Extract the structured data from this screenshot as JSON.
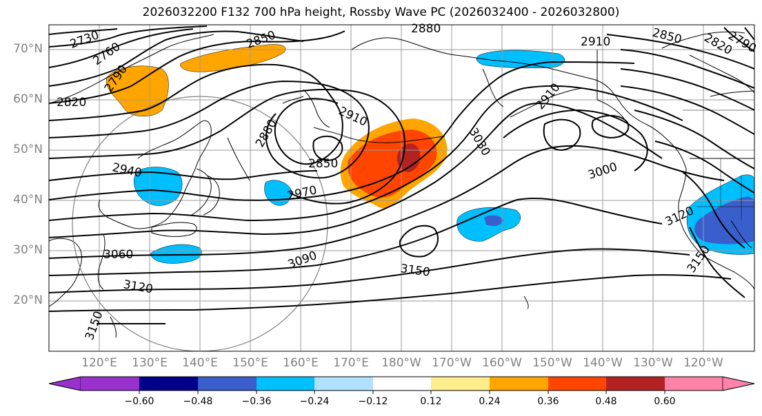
{
  "title": "2026032200 F132 700 hPa height, Rossby Wave PC (2026032400 - 2026032800)",
  "lat_labels": [
    "70°N",
    "60°N",
    "50°N",
    "40°N",
    "30°N",
    "20°N"
  ],
  "lon_labels": [
    "120°E",
    "130°E",
    "140°E",
    "150°E",
    "160°E",
    "170°E",
    "180°W",
    "170°W",
    "160°W",
    "150°W",
    "140°W",
    "130°W",
    "120°W"
  ],
  "contour_labels": [
    "2730",
    "2760",
    "2790",
    "2820",
    "2850",
    "2880",
    "2880",
    "2910",
    "2910",
    "2940",
    "2850",
    "2970",
    "3030",
    "2910",
    "3000",
    "3060",
    "3090",
    "3120",
    "3150",
    "3120",
    "3150",
    "3150",
    "2850",
    "2820",
    "2790"
  ],
  "colorbar": {
    "ticks": [
      "−0.60",
      "−0.48",
      "−0.36",
      "−0.24",
      "−0.12",
      "0.12",
      "0.24",
      "0.36",
      "0.48",
      "0.60"
    ],
    "colors": [
      "#9932cc",
      "#00008b",
      "#3a5fcd",
      "#00bfff",
      "#b0e2ff",
      "#ffffff",
      "#ffec8b",
      "#ffa500",
      "#ff4500",
      "#b22222",
      "#ff82ab"
    ]
  },
  "shading_colors": {
    "orange": "#ffa500",
    "red_orange": "#ff4500",
    "dark_red": "#b22222",
    "light_yellow": "#ffec8b",
    "blue": "#00bfff",
    "royal_blue": "#3a5fcd"
  }
}
